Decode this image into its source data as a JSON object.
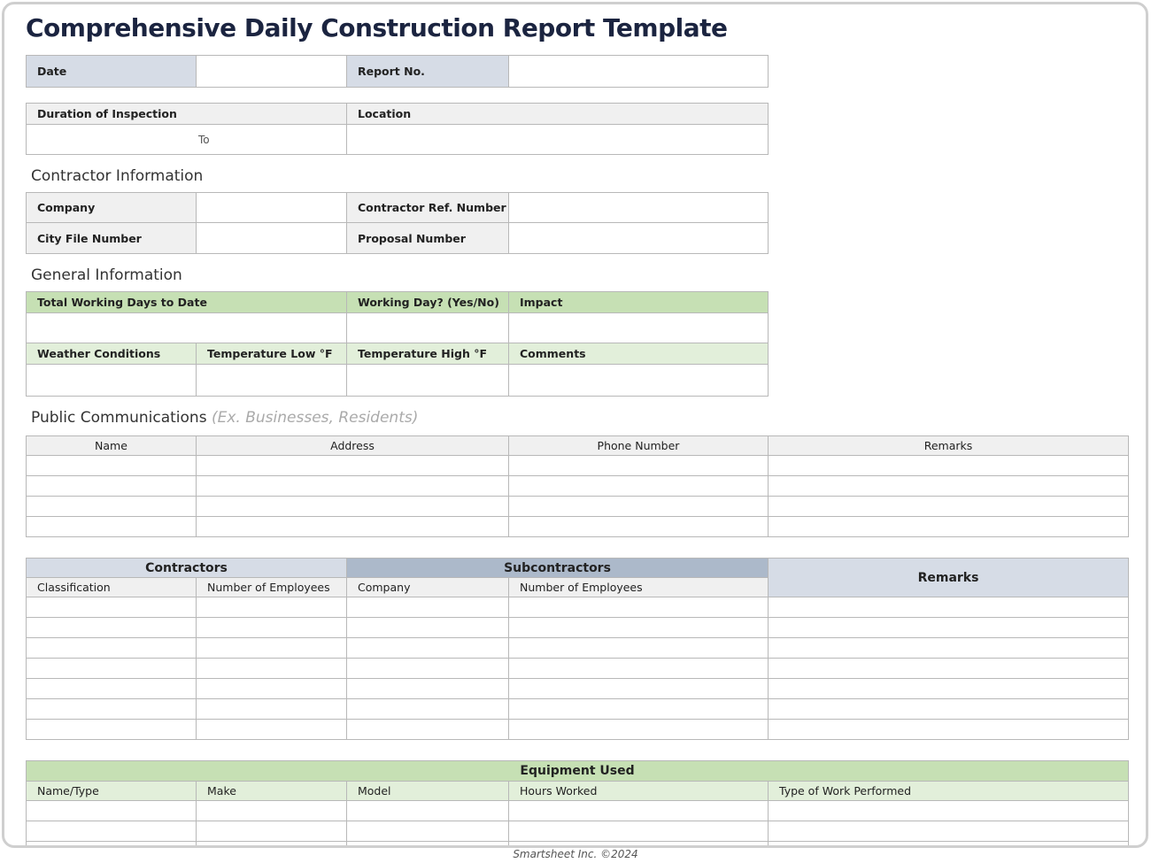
{
  "title": "Comprehensive Daily Construction Report Template",
  "header": {
    "date": "Date",
    "report_no": "Report No.",
    "duration": "Duration of Inspection",
    "to": "To",
    "location": "Location"
  },
  "contractor_info": {
    "heading": "Contractor Information",
    "company": "Company",
    "ref": "Contractor Ref. Number",
    "city_file": "City File Number",
    "proposal": "Proposal Number"
  },
  "general_info": {
    "heading": "General Information",
    "total_days": "Total Working Days to Date",
    "working_day": "Working Day? (Yes/No)",
    "impact": "Impact",
    "weather": "Weather Conditions",
    "temp_low": "Temperature Low °F",
    "temp_high": "Temperature High °F",
    "comments": "Comments"
  },
  "public_comm": {
    "heading": "Public Communications",
    "hint": "(Ex. Businesses, Residents)",
    "columns": [
      "Name",
      "Address",
      "Phone Number",
      "Remarks"
    ]
  },
  "workforce": {
    "contractors": "Contractors",
    "subcontractors": "Subcontractors",
    "remarks": "Remarks",
    "columns": [
      "Classification",
      "Number of Employees",
      "Company",
      "Number of Employees"
    ]
  },
  "equipment": {
    "heading": "Equipment Used",
    "columns": [
      "Name/Type",
      "Make",
      "Model",
      "Hours Worked",
      "Type of Work Performed"
    ]
  },
  "footer": "Smartsheet Inc. ©2024",
  "colors": {
    "title": "#1b2440",
    "label_blue": "#d6dce6",
    "header_blue": "#acb9ca",
    "green": "#c6e0b4",
    "light_green": "#e2efda",
    "label_gray": "#f0f0f0"
  }
}
